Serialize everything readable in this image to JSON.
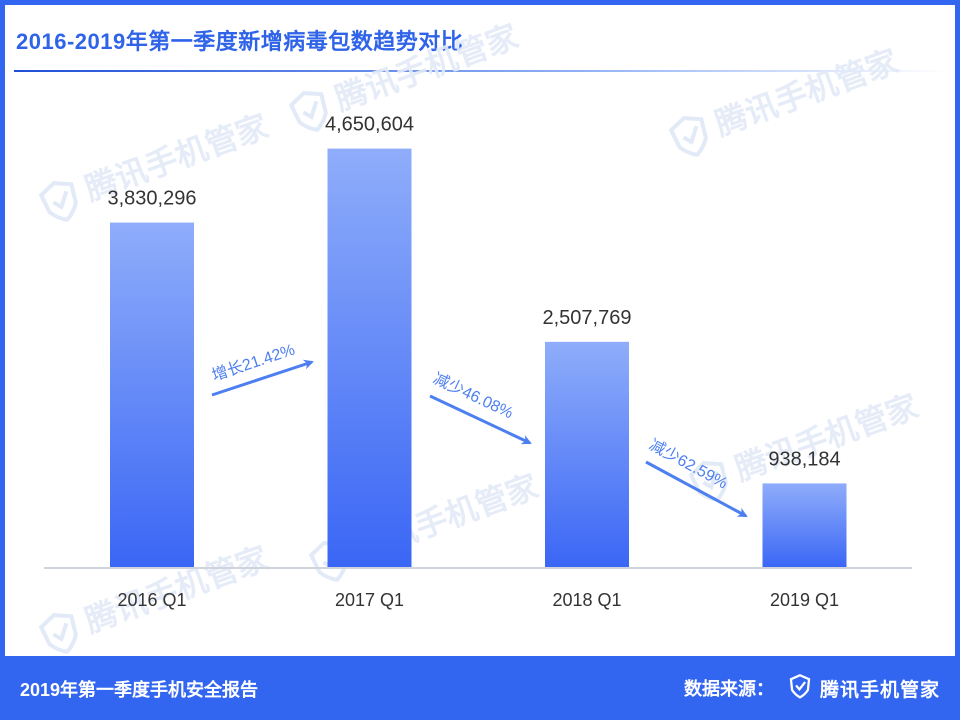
{
  "header": {
    "title": "2016-2019年第一季度新增病毒包数趋势对比"
  },
  "footer": {
    "report_title": "2019年第一季度手机安全报告",
    "source_label": "数据来源：",
    "brand": "腾讯手机管家"
  },
  "watermark": {
    "text": "腾讯手机管家"
  },
  "colors": {
    "accent": "#3366f0",
    "bar_top": "#8fadfa",
    "bar_bottom": "#3a66f5",
    "arrow": "#4d7ff0",
    "text_dark": "#333333"
  },
  "chart_data": {
    "type": "bar",
    "title": "2016-2019年第一季度新增病毒包数趋势对比",
    "xlabel": "",
    "ylabel": "",
    "categories": [
      "2016 Q1",
      "2017 Q1",
      "2018 Q1",
      "2019 Q1"
    ],
    "values": [
      3830296,
      4650604,
      2507769,
      938184
    ],
    "value_labels": [
      "3,830,296",
      "4,650,604",
      "2,507,769",
      "938,184"
    ],
    "ylim": [
      0,
      5500000
    ],
    "grid": false,
    "annotations": [
      {
        "text": "增长21.42%",
        "from": "2016 Q1",
        "to": "2017 Q1",
        "direction": "up"
      },
      {
        "text": "减少46.08%",
        "from": "2017 Q1",
        "to": "2018 Q1",
        "direction": "down"
      },
      {
        "text": "减少62.59%",
        "from": "2018 Q1",
        "to": "2019 Q1",
        "direction": "down"
      }
    ]
  }
}
